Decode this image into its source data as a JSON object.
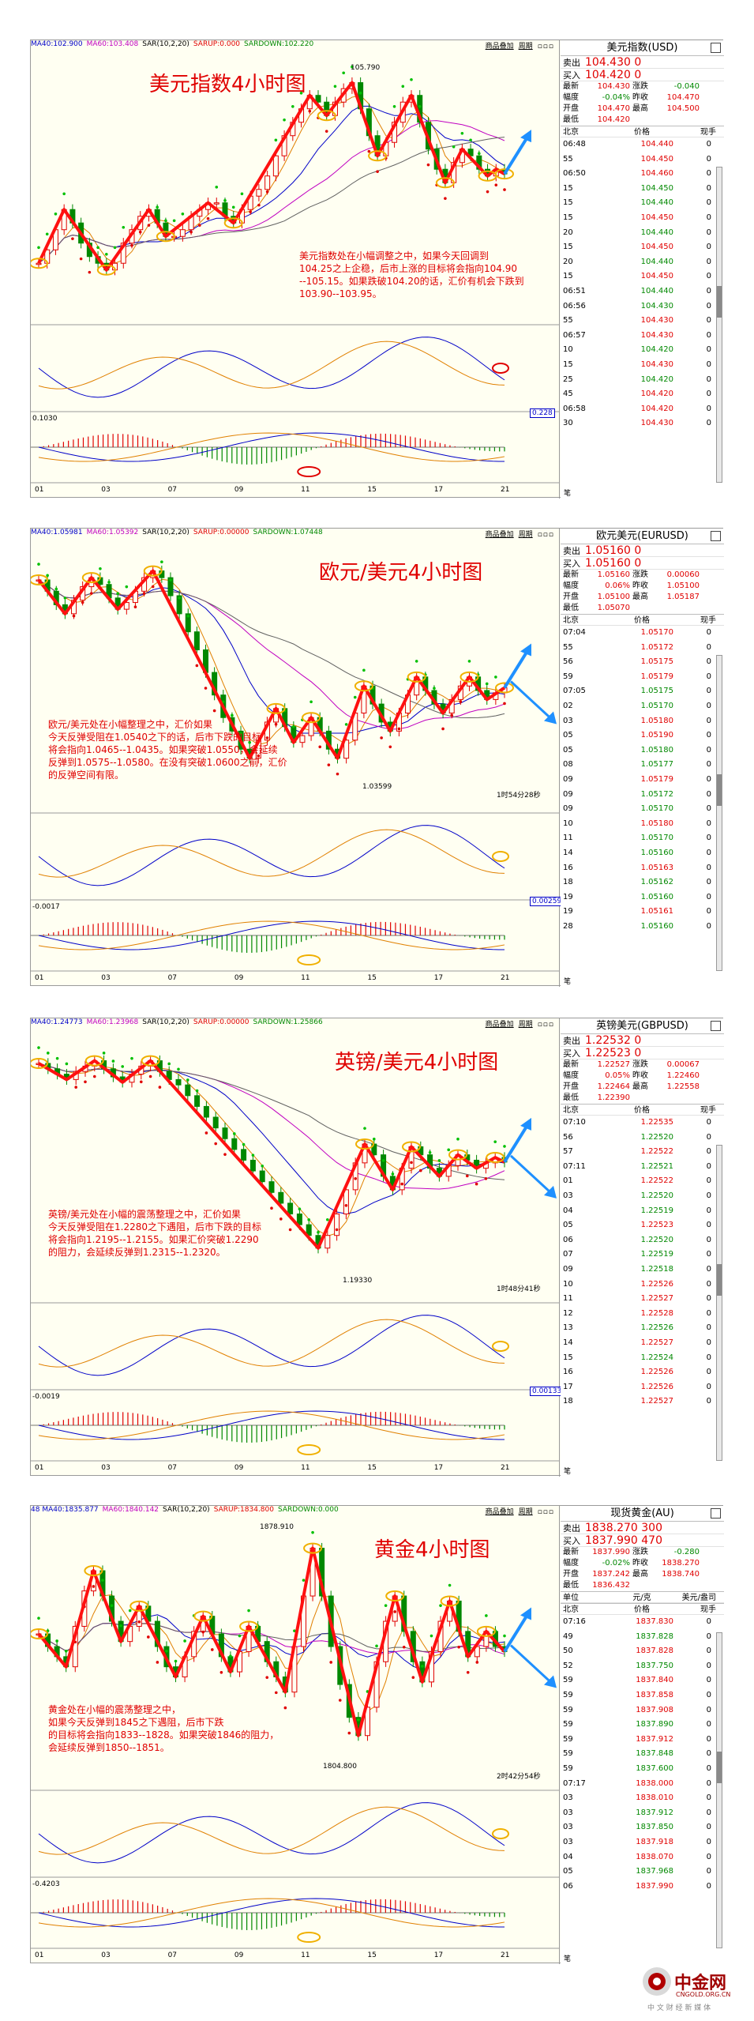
{
  "watermark": {
    "name": "中金网",
    "domain": "CNGOLD.ORG.CN",
    "slogan": "中 文 财 经 新 媒 体"
  },
  "panels": [
    {
      "title": "美元指数4小时图",
      "indicators": {
        "ma40": "MA40:102.900",
        "ma60": "MA60:103.408",
        "sar": "SAR(10,2,20)",
        "sarup": "SARUP:0.000",
        "sardown": "SARDOWN:102.220"
      },
      "buttons": [
        "商品叠加",
        "周期"
      ],
      "hi_label": "105.790",
      "lo_label": "",
      "countdown": "",
      "macd_value": "0.1030",
      "macd_box": "0.228",
      "note": "美元指数处在小幅调整之中，如果今天回调到\n104.25之上企稳，后市上涨的目标将会指向104.90\n--105.15。如果跌破104.20的话，汇价有机会下跌到\n103.90--103.95。",
      "x_ticks": [
        "01",
        "03",
        "07",
        "09",
        "11",
        "15",
        "17",
        "21"
      ],
      "quote": {
        "name": "美元指数(USD)",
        "sell_label": "卖出",
        "sell": "104.430 0",
        "buy_label": "买入",
        "buy": "104.420 0",
        "stats": [
          [
            "最新",
            "104.430",
            "涨跌",
            "-0.040"
          ],
          [
            "幅度",
            "-0.04%",
            "昨收",
            "104.470"
          ],
          [
            "开盘",
            "104.470",
            "最高",
            "104.500"
          ],
          [
            "最低",
            "104.420",
            "",
            ""
          ]
        ],
        "head": [
          "北京",
          "价格",
          "现手"
        ],
        "ticks": [
          [
            "06:48",
            "104.440",
            "0"
          ],
          [
            "55",
            "104.450",
            "0"
          ],
          [
            "06:50",
            "104.460",
            "0"
          ],
          [
            "15",
            "104.450",
            "0"
          ],
          [
            "15",
            "104.440",
            "0"
          ],
          [
            "15",
            "104.450",
            "0"
          ],
          [
            "20",
            "104.440",
            "0"
          ],
          [
            "15",
            "104.450",
            "0"
          ],
          [
            "20",
            "104.440",
            "0"
          ],
          [
            "15",
            "104.450",
            "0"
          ],
          [
            "06:51",
            "104.440",
            "0"
          ],
          [
            "06:56",
            "104.430",
            "0"
          ],
          [
            "55",
            "104.430",
            "0"
          ],
          [
            "06:57",
            "104.430",
            "0"
          ],
          [
            "10",
            "104.420",
            "0"
          ],
          [
            "15",
            "104.430",
            "0"
          ],
          [
            "25",
            "104.420",
            "0"
          ],
          [
            "45",
            "104.420",
            "0"
          ],
          [
            "06:58",
            "104.420",
            "0"
          ],
          [
            "30",
            "104.430",
            "0"
          ]
        ],
        "footer": "笔"
      }
    },
    {
      "title": "欧元/美元4小时图",
      "indicators": {
        "ma40": "MA40:1.05981",
        "ma60": "MA60:1.05392",
        "sar": "SAR(10,2,20)",
        "sarup": "SARUP:0.00000",
        "sardown": "SARDOWN:1.07448"
      },
      "buttons": [
        "商品叠加",
        "周期"
      ],
      "hi_label": "",
      "lo_label": "1.03599",
      "countdown": "1时54分28秒",
      "macd_value": "-0.0017",
      "macd_box": "0.00259",
      "note": "欧元/美元处在小幅整理之中，汇价如果\n今天反弹受阻在1.0540之下的话，后市下跌的目标\n将会指向1.0465--1.0435。如果突破1.0550，会延续\n反弹到1.0575--1.0580。在没有突破1.0600之前，汇价\n的反弹空间有限。",
      "x_ticks": [
        "01",
        "03",
        "07",
        "09",
        "11",
        "15",
        "17",
        "21"
      ],
      "quote": {
        "name": "欧元美元(EURUSD)",
        "sell_label": "卖出",
        "sell": "1.05160 0",
        "buy_label": "买入",
        "buy": "1.05160 0",
        "stats": [
          [
            "最新",
            "1.05160",
            "涨跌",
            "0.00060"
          ],
          [
            "幅度",
            "0.06%",
            "昨收",
            "1.05100"
          ],
          [
            "开盘",
            "1.05100",
            "最高",
            "1.05187"
          ],
          [
            "最低",
            "1.05070",
            "",
            ""
          ]
        ],
        "head": [
          "北京",
          "价格",
          "现手"
        ],
        "ticks": [
          [
            "07:04",
            "1.05170",
            "0"
          ],
          [
            "55",
            "1.05172",
            "0"
          ],
          [
            "56",
            "1.05175",
            "0"
          ],
          [
            "59",
            "1.05179",
            "0"
          ],
          [
            "07:05",
            "1.05175",
            "0"
          ],
          [
            "02",
            "1.05170",
            "0"
          ],
          [
            "03",
            "1.05180",
            "0"
          ],
          [
            "05",
            "1.05190",
            "0"
          ],
          [
            "05",
            "1.05180",
            "0"
          ],
          [
            "08",
            "1.05177",
            "0"
          ],
          [
            "09",
            "1.05179",
            "0"
          ],
          [
            "09",
            "1.05172",
            "0"
          ],
          [
            "09",
            "1.05170",
            "0"
          ],
          [
            "10",
            "1.05180",
            "0"
          ],
          [
            "11",
            "1.05170",
            "0"
          ],
          [
            "14",
            "1.05160",
            "0"
          ],
          [
            "16",
            "1.05163",
            "0"
          ],
          [
            "18",
            "1.05162",
            "0"
          ],
          [
            "19",
            "1.05160",
            "0"
          ],
          [
            "19",
            "1.05161",
            "0"
          ],
          [
            "28",
            "1.05160",
            "0"
          ]
        ],
        "footer": "笔"
      }
    },
    {
      "title": "英镑/美元4小时图",
      "indicators": {
        "ma40": "MA40:1.24773",
        "ma60": "MA60:1.23968",
        "sar": "SAR(10,2,20)",
        "sarup": "SARUP:0.00000",
        "sardown": "SARDOWN:1.25866"
      },
      "buttons": [
        "商品叠加",
        "周期"
      ],
      "hi_label": "",
      "lo_label": "1.19330",
      "countdown": "1时48分41秒",
      "macd_value": "-0.0019",
      "macd_box": "0.00133",
      "note": "英镑/美元处在小幅的震荡整理之中，汇价如果\n今天反弹受阻在1.2280之下遇阻，后市下跌的目标\n将会指向1.2195--1.2155。如果汇价突破1.2290\n的阻力，会延续反弹到1.2315--1.2320。",
      "x_ticks": [
        "01",
        "03",
        "07",
        "09",
        "11",
        "15",
        "17",
        "21"
      ],
      "quote": {
        "name": "英镑美元(GBPUSD)",
        "sell_label": "卖出",
        "sell": "1.22532 0",
        "buy_label": "买入",
        "buy": "1.22523 0",
        "stats": [
          [
            "最新",
            "1.22527",
            "涨跌",
            "0.00067"
          ],
          [
            "幅度",
            "0.05%",
            "昨收",
            "1.22460"
          ],
          [
            "开盘",
            "1.22464",
            "最高",
            "1.22558"
          ],
          [
            "最低",
            "1.22390",
            "",
            ""
          ]
        ],
        "head": [
          "北京",
          "价格",
          "现手"
        ],
        "ticks": [
          [
            "07:10",
            "1.22535",
            "0"
          ],
          [
            "56",
            "1.22520",
            "0"
          ],
          [
            "57",
            "1.22522",
            "0"
          ],
          [
            "07:11",
            "1.22521",
            "0"
          ],
          [
            "01",
            "1.22522",
            "0"
          ],
          [
            "03",
            "1.22520",
            "0"
          ],
          [
            "04",
            "1.22519",
            "0"
          ],
          [
            "05",
            "1.22523",
            "0"
          ],
          [
            "06",
            "1.22520",
            "0"
          ],
          [
            "07",
            "1.22519",
            "0"
          ],
          [
            "09",
            "1.22518",
            "0"
          ],
          [
            "10",
            "1.22526",
            "0"
          ],
          [
            "11",
            "1.22527",
            "0"
          ],
          [
            "12",
            "1.22528",
            "0"
          ],
          [
            "13",
            "1.22526",
            "0"
          ],
          [
            "14",
            "1.22527",
            "0"
          ],
          [
            "15",
            "1.22524",
            "0"
          ],
          [
            "16",
            "1.22526",
            "0"
          ],
          [
            "17",
            "1.22526",
            "0"
          ],
          [
            "18",
            "1.22527",
            "0"
          ]
        ],
        "footer": "笔"
      }
    },
    {
      "title": "黄金4小时图",
      "indicators": {
        "ma40": "48 MA40:1835.877",
        "ma60": "MA60:1840.142",
        "sar": "SAR(10,2,20)",
        "sarup": "SARUP:1834.800",
        "sardown": "SARDOWN:0.000"
      },
      "buttons": [
        "商品叠加",
        "周期"
      ],
      "hi_label": "1878.910",
      "lo_label": "1804.800",
      "countdown": "2时42分54秒",
      "macd_value": "-0.4203",
      "macd_box": "",
      "note": "黄金处在小幅的震荡整理之中，\n如果今天反弹到1845之下遇阻，后市下跌\n的目标将会指向1833--1828。如果突破1846的阻力，\n会延续反弹到1850--1851。",
      "x_ticks": [
        "01",
        "03",
        "07",
        "09",
        "11",
        "15",
        "17",
        "21"
      ],
      "quote": {
        "name": "现货黄金(AU)",
        "sell_label": "卖出",
        "sell": "1838.270 300",
        "buy_label": "买入",
        "buy": "1837.990 470",
        "stats": [
          [
            "最新",
            "1837.990",
            "涨跌",
            "-0.280"
          ],
          [
            "幅度",
            "-0.02%",
            "昨收",
            "1838.270"
          ],
          [
            "开盘",
            "1837.242",
            "最高",
            "1838.740"
          ],
          [
            "最低",
            "1836.432",
            "",
            ""
          ]
        ],
        "unit_row": [
          "单位",
          "元/克",
          "美元/盎司"
        ],
        "head": [
          "北京",
          "价格",
          "现手"
        ],
        "ticks": [
          [
            "07:16",
            "1837.830",
            "0"
          ],
          [
            "49",
            "1837.828",
            "0"
          ],
          [
            "50",
            "1837.828",
            "0"
          ],
          [
            "52",
            "1837.750",
            "0"
          ],
          [
            "59",
            "1837.840",
            "0"
          ],
          [
            "59",
            "1837.858",
            "0"
          ],
          [
            "59",
            "1837.908",
            "0"
          ],
          [
            "59",
            "1837.890",
            "0"
          ],
          [
            "59",
            "1837.912",
            "0"
          ],
          [
            "59",
            "1837.848",
            "0"
          ],
          [
            "59",
            "1837.600",
            "0"
          ],
          [
            "07:17",
            "1838.000",
            "0"
          ],
          [
            "03",
            "1838.010",
            "0"
          ],
          [
            "03",
            "1837.912",
            "0"
          ],
          [
            "03",
            "1837.850",
            "0"
          ],
          [
            "03",
            "1837.918",
            "0"
          ],
          [
            "04",
            "1838.070",
            "0"
          ],
          [
            "05",
            "1837.968",
            "0"
          ],
          [
            "06",
            "1837.990",
            "0"
          ]
        ],
        "footer": "笔"
      }
    }
  ],
  "chart_data": [
    {
      "type": "candlestick",
      "title": "美元指数4小时图",
      "x_ticks": [
        "01",
        "03",
        "07",
        "09",
        "11",
        "15",
        "17",
        "21"
      ],
      "labeled_high": 105.79,
      "last": 104.43,
      "close": [
        103.1,
        103.3,
        103.6,
        103.9,
        103.7,
        103.4,
        103.2,
        103.1,
        103.0,
        103.1,
        103.4,
        103.6,
        103.8,
        103.9,
        103.7,
        103.5,
        103.5,
        103.6,
        103.8,
        103.9,
        104.0,
        104.0,
        103.8,
        103.7,
        103.9,
        104.1,
        104.2,
        104.4,
        104.7,
        105.0,
        105.2,
        105.4,
        105.6,
        105.5,
        105.3,
        105.5,
        105.7,
        105.79,
        105.4,
        105.0,
        104.7,
        104.9,
        105.2,
        105.5,
        105.6,
        105.2,
        104.8,
        104.5,
        104.3,
        104.6,
        104.8,
        104.7,
        104.5,
        104.4,
        104.5,
        104.43
      ]
    },
    {
      "type": "candlestick",
      "title": "欧元/美元4小时图",
      "x_ticks": [
        "01",
        "03",
        "07",
        "09",
        "11",
        "15",
        "17",
        "21"
      ],
      "labeled_low": 1.03599,
      "last": 1.0516,
      "close": [
        1.0755,
        1.073,
        1.07,
        1.068,
        1.071,
        1.074,
        1.076,
        1.0745,
        1.0715,
        1.069,
        1.0705,
        1.073,
        1.076,
        1.0775,
        1.076,
        1.072,
        1.068,
        1.064,
        1.06,
        1.055,
        1.05,
        1.045,
        1.042,
        1.038,
        1.036,
        1.04,
        1.044,
        1.047,
        1.043,
        1.0395,
        1.041,
        1.045,
        1.042,
        1.038,
        1.03599,
        1.04,
        1.046,
        1.052,
        1.048,
        1.044,
        1.042,
        1.046,
        1.05,
        1.054,
        1.051,
        1.048,
        1.046,
        1.049,
        1.052,
        1.054,
        1.051,
        1.049,
        1.0505,
        1.0516
      ]
    },
    {
      "type": "candlestick",
      "title": "英镑/美元4小时图",
      "x_ticks": [
        "01",
        "03",
        "07",
        "09",
        "11",
        "15",
        "17",
        "21"
      ],
      "labeled_low": 1.1933,
      "last": 1.22527,
      "close": [
        1.262,
        1.26,
        1.258,
        1.256,
        1.259,
        1.261,
        1.263,
        1.26,
        1.257,
        1.255,
        1.258,
        1.261,
        1.263,
        1.259,
        1.256,
        1.254,
        1.25,
        1.246,
        1.242,
        1.238,
        1.234,
        1.23,
        1.226,
        1.222,
        1.218,
        1.214,
        1.21,
        1.206,
        1.202,
        1.198,
        1.1933,
        1.198,
        1.206,
        1.215,
        1.225,
        1.232,
        1.228,
        1.22,
        1.215,
        1.223,
        1.231,
        1.228,
        1.223,
        1.22,
        1.224,
        1.228,
        1.226,
        1.223,
        1.225,
        1.227,
        1.2253
      ]
    },
    {
      "type": "candlestick",
      "title": "黄金4小时图",
      "x_ticks": [
        "01",
        "03",
        "07",
        "09",
        "11",
        "15",
        "17",
        "21"
      ],
      "labeled_high": 1878.91,
      "labeled_low": 1804.8,
      "last": 1837.99,
      "close": [
        1845,
        1840,
        1836,
        1832,
        1848,
        1862,
        1870,
        1860,
        1850,
        1842,
        1848,
        1856,
        1850,
        1840,
        1832,
        1828,
        1836,
        1846,
        1852,
        1845,
        1836,
        1830,
        1838,
        1848,
        1842,
        1834,
        1828,
        1822,
        1840,
        1860,
        1878.9,
        1860,
        1840,
        1825,
        1812,
        1804.8,
        1816,
        1834,
        1850,
        1860,
        1846,
        1834,
        1826,
        1838,
        1850,
        1858,
        1846,
        1836,
        1840,
        1846,
        1840,
        1838
      ]
    }
  ]
}
